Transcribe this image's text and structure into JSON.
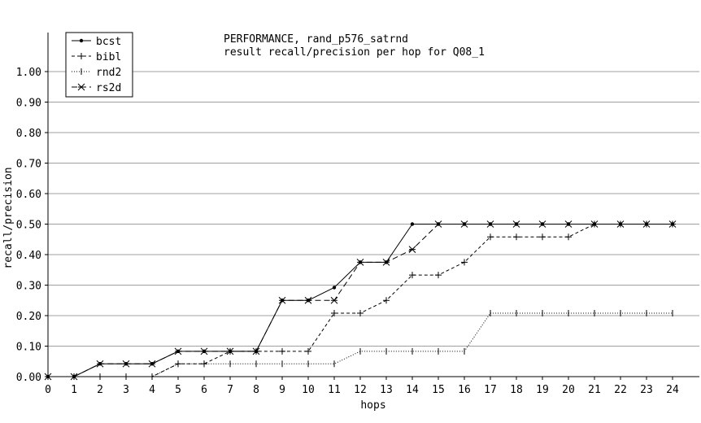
{
  "chart_data": {
    "type": "line",
    "title": "PERFORMANCE, rand_p576_satrnd",
    "subtitle": "result recall/precision per hop for Q08_1",
    "xlabel": "hops",
    "ylabel": "recall/precision",
    "xlim": [
      0,
      25
    ],
    "ylim": [
      0,
      1.08
    ],
    "x_ticks": [
      "0",
      "1",
      "2",
      "3",
      "4",
      "5",
      "6",
      "7",
      "8",
      "9",
      "10",
      "11",
      "12",
      "13",
      "14",
      "15",
      "16",
      "17",
      "18",
      "19",
      "20",
      "21",
      "22",
      "23",
      "24"
    ],
    "y_ticks": [
      "0.00",
      "0.10",
      "0.20",
      "0.30",
      "0.40",
      "0.50",
      "0.60",
      "0.70",
      "0.80",
      "0.90",
      "1.00"
    ],
    "grid": "horizontal",
    "legend_position": "top-left",
    "x": [
      0,
      1,
      2,
      3,
      4,
      5,
      6,
      7,
      8,
      9,
      10,
      11,
      12,
      13,
      14,
      15,
      16,
      17,
      18,
      19,
      20,
      21,
      22,
      23,
      24
    ],
    "series": [
      {
        "name": "bcst",
        "style": "solid",
        "marker": "dot",
        "values": [
          0,
          0,
          0.042,
          0.042,
          0.042,
          0.083,
          0.083,
          0.083,
          0.083,
          0.25,
          0.25,
          0.292,
          0.375,
          0.375,
          0.5,
          0.5,
          0.5,
          0.5,
          0.5,
          0.5,
          0.5,
          0.5,
          0.5,
          0.5,
          0.5
        ]
      },
      {
        "name": "bibl",
        "style": "dashed",
        "marker": "plus",
        "values": [
          0,
          0,
          0,
          0,
          0,
          0.042,
          0.042,
          0.083,
          0.083,
          0.083,
          0.083,
          0.208,
          0.208,
          0.25,
          0.333,
          0.333,
          0.375,
          0.458,
          0.458,
          0.458,
          0.458,
          0.5,
          0.5,
          0.5,
          0.5
        ]
      },
      {
        "name": "rnd2",
        "style": "dotted",
        "marker": "vbar",
        "values": [
          0,
          0,
          0,
          0,
          0,
          0.042,
          0.042,
          0.042,
          0.042,
          0.042,
          0.042,
          0.042,
          0.083,
          0.083,
          0.083,
          0.083,
          0.083,
          0.208,
          0.208,
          0.208,
          0.208,
          0.208,
          0.208,
          0.208,
          0.208
        ]
      },
      {
        "name": "rs2d",
        "style": "longdash",
        "marker": "star",
        "values": [
          0,
          0,
          0.042,
          0.042,
          0.042,
          0.083,
          0.083,
          0.083,
          0.083,
          0.25,
          0.25,
          0.25,
          0.375,
          0.375,
          0.417,
          0.5,
          0.5,
          0.5,
          0.5,
          0.5,
          0.5,
          0.5,
          0.5,
          0.5,
          0.5
        ]
      }
    ]
  }
}
